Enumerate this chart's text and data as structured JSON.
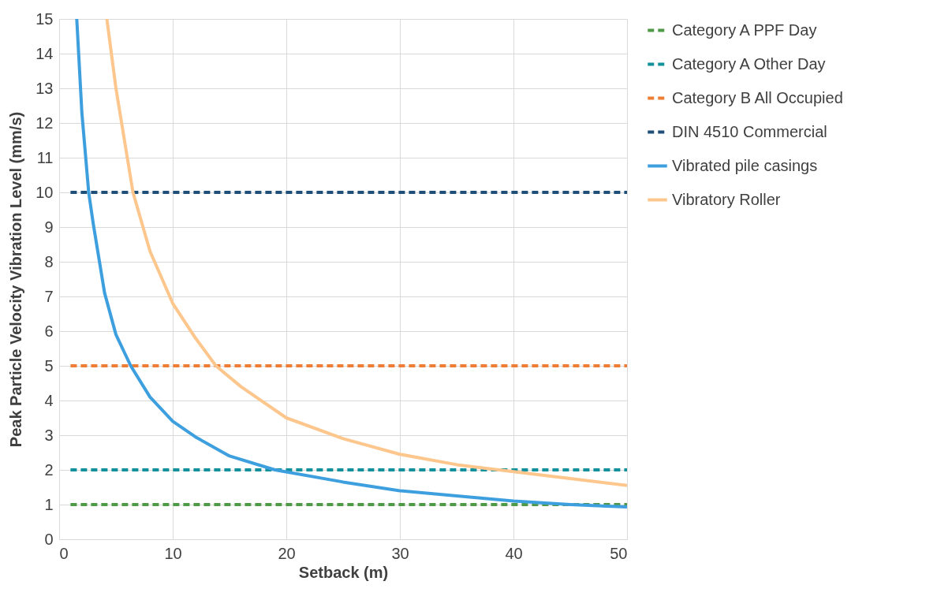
{
  "chart_data": {
    "type": "line",
    "xlabel": "Setback (m)",
    "ylabel": "Peak Particle Velocity Vibration Level (mm/s)",
    "xlim": [
      0,
      50
    ],
    "xticks": [
      0,
      10,
      20,
      30,
      40,
      50
    ],
    "ylim": [
      0,
      15
    ],
    "yticks": [
      0,
      1,
      2,
      3,
      4,
      5,
      6,
      7,
      8,
      9,
      10,
      11,
      12,
      13,
      14,
      15
    ],
    "grid": true,
    "legend": "right",
    "marker": "none",
    "series": [
      {
        "name": "Category A PPF Day",
        "color": "#4e9a47",
        "line_style": "dashed",
        "x": [
          1,
          50
        ],
        "values": [
          1,
          1
        ]
      },
      {
        "name": "Category A Other Day",
        "color": "#12919c",
        "line_style": "dashed",
        "x": [
          1,
          50
        ],
        "values": [
          2,
          2
        ]
      },
      {
        "name": "Category B All Occupied",
        "color": "#ee7d35",
        "line_style": "dashed",
        "x": [
          1,
          50
        ],
        "values": [
          5,
          5
        ]
      },
      {
        "name": "DIN 4510 Commercial",
        "color": "#1f4e79",
        "line_style": "dashed",
        "x": [
          1,
          50
        ],
        "values": [
          10,
          10
        ]
      },
      {
        "name": "Vibrated pile casings",
        "color": "#3e9fdf",
        "line_style": "solid",
        "x": [
          1.55,
          2,
          2.6,
          3,
          4,
          5,
          6.3,
          8,
          10,
          12,
          15,
          19,
          25,
          30,
          35,
          40,
          45,
          50
        ],
        "values": [
          15,
          12.3,
          10,
          9.1,
          7.1,
          5.9,
          5,
          4.1,
          3.4,
          2.95,
          2.4,
          2,
          1.65,
          1.4,
          1.25,
          1.1,
          1,
          0.93
        ]
      },
      {
        "name": "Vibratory Roller",
        "color": "#fdc68c",
        "line_style": "solid",
        "x": [
          4.2,
          5,
          6.5,
          8,
          10,
          12,
          13.8,
          16,
          20,
          25,
          30,
          35,
          40,
          45,
          50
        ],
        "values": [
          15,
          13,
          10,
          8.3,
          6.8,
          5.8,
          5,
          4.4,
          3.5,
          2.9,
          2.45,
          2.15,
          1.95,
          1.75,
          1.55
        ]
      }
    ]
  }
}
